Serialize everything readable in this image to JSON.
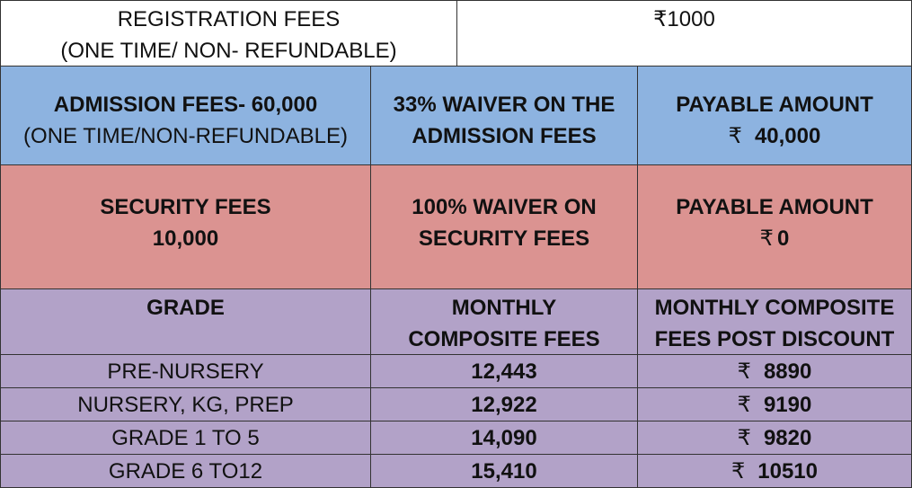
{
  "registration": {
    "label_line1": "REGISTRATION FEES",
    "label_line2": "(ONE TIME/ NON- REFUNDABLE)",
    "amount": "₹1000"
  },
  "admission": {
    "fee_line1": "ADMISSION FEES- 60,000",
    "fee_line2": "(ONE TIME/NON-REFUNDABLE)",
    "waiver_line1": "33% WAIVER ON THE",
    "waiver_line2": "ADMISSION FEES",
    "payable_label": "PAYABLE AMOUNT",
    "payable_symbol": "₹",
    "payable_value": "40,000"
  },
  "security": {
    "fee_line1": "SECURITY FEES",
    "fee_line2": "10,000",
    "waiver_line1": "100% WAIVER ON",
    "waiver_line2": "SECURITY FEES",
    "payable_label": "PAYABLE AMOUNT",
    "payable_symbol": "₹",
    "payable_value": "0"
  },
  "grade_table": {
    "headers": {
      "grade": "GRADE",
      "monthly_line1": "MONTHLY",
      "monthly_line2": "COMPOSITE FEES",
      "post_line1": "MONTHLY COMPOSITE",
      "post_line2": "FEES POST DISCOUNT"
    },
    "rows": [
      {
        "grade": "PRE-NURSERY",
        "monthly": "12,443",
        "symbol": "₹",
        "post": "8890"
      },
      {
        "grade": "NURSERY, KG, PREP",
        "monthly": "12,922",
        "symbol": "₹",
        "post": "9190"
      },
      {
        "grade": "GRADE 1 TO 5",
        "monthly": "14,090",
        "symbol": "₹",
        "post": "9820"
      },
      {
        "grade": "GRADE 6 TO12",
        "monthly": "15,410",
        "symbol": "₹",
        "post": "10510"
      }
    ]
  },
  "colors": {
    "admission_row": "#8db3e0",
    "security_row": "#db9391",
    "grade_rows": "#b2a2c8"
  }
}
